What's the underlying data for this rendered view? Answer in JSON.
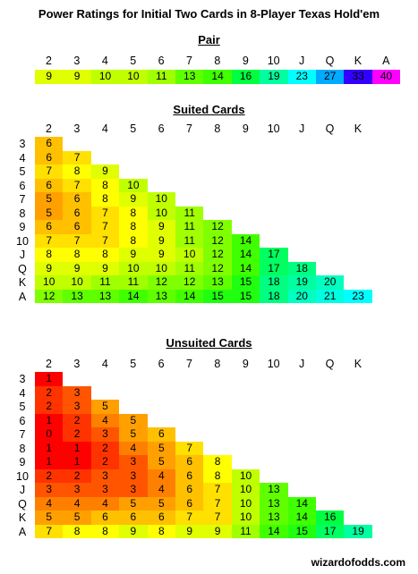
{
  "title": "Power Ratings for Initial Two Cards in 8-Player Texas Hold'em",
  "footer": "wizardofodds.com",
  "ranks": [
    "2",
    "3",
    "4",
    "5",
    "6",
    "7",
    "8",
    "9",
    "10",
    "J",
    "Q",
    "K",
    "A"
  ],
  "colors": {
    "1": "#ff0000",
    "0": "#ff0000",
    "2": "#ff3300",
    "3": "#ff5500",
    "4": "#ff8000",
    "5": "#ffa000",
    "6": "#ffc000",
    "7": "#ffe000",
    "8": "#ffff00",
    "9": "#e0ff00",
    "10": "#c0ff00",
    "11": "#a0ff00",
    "12": "#80ff00",
    "13": "#60ff00",
    "14": "#40ff00",
    "15": "#20ff10",
    "16": "#00ff40",
    "17": "#00ff60",
    "18": "#00ff80",
    "19": "#00ffa0",
    "20": "#00ffc0",
    "21": "#00ffe0",
    "23": "#00ffff",
    "27": "#00aaff",
    "33": "#3300ff",
    "40": "#ff00ff"
  },
  "pair": {
    "title": "Pair",
    "values": [
      9,
      9,
      10,
      10,
      11,
      13,
      14,
      16,
      19,
      23,
      27,
      33,
      40
    ]
  },
  "suited": {
    "title": "Suited Cards",
    "rows": [
      [
        6
      ],
      [
        6,
        7
      ],
      [
        7,
        8,
        9
      ],
      [
        6,
        7,
        8,
        10
      ],
      [
        5,
        6,
        8,
        9,
        10
      ],
      [
        5,
        6,
        7,
        8,
        10,
        11
      ],
      [
        6,
        6,
        7,
        8,
        9,
        11,
        12
      ],
      [
        7,
        7,
        7,
        8,
        9,
        11,
        12,
        14
      ],
      [
        8,
        8,
        8,
        9,
        9,
        10,
        12,
        14,
        17
      ],
      [
        9,
        9,
        9,
        10,
        10,
        11,
        12,
        14,
        17,
        18
      ],
      [
        10,
        10,
        11,
        11,
        12,
        12,
        13,
        15,
        18,
        19,
        20
      ],
      [
        12,
        13,
        13,
        14,
        13,
        14,
        15,
        15,
        18,
        20,
        21,
        23
      ]
    ]
  },
  "unsuited": {
    "title": "Unsuited Cards",
    "rows": [
      [
        1
      ],
      [
        2,
        3
      ],
      [
        2,
        3,
        5
      ],
      [
        1,
        2,
        4,
        5
      ],
      [
        0,
        2,
        3,
        5,
        6
      ],
      [
        1,
        1,
        2,
        4,
        5,
        7
      ],
      [
        1,
        1,
        2,
        3,
        5,
        6,
        8
      ],
      [
        2,
        2,
        3,
        3,
        4,
        6,
        8,
        10
      ],
      [
        3,
        3,
        3,
        3,
        4,
        6,
        7,
        10,
        13
      ],
      [
        4,
        4,
        4,
        5,
        5,
        6,
        7,
        10,
        13,
        14
      ],
      [
        5,
        5,
        6,
        6,
        6,
        7,
        7,
        10,
        13,
        14,
        16
      ],
      [
        7,
        8,
        8,
        9,
        8,
        9,
        9,
        11,
        14,
        15,
        17,
        19
      ]
    ]
  }
}
